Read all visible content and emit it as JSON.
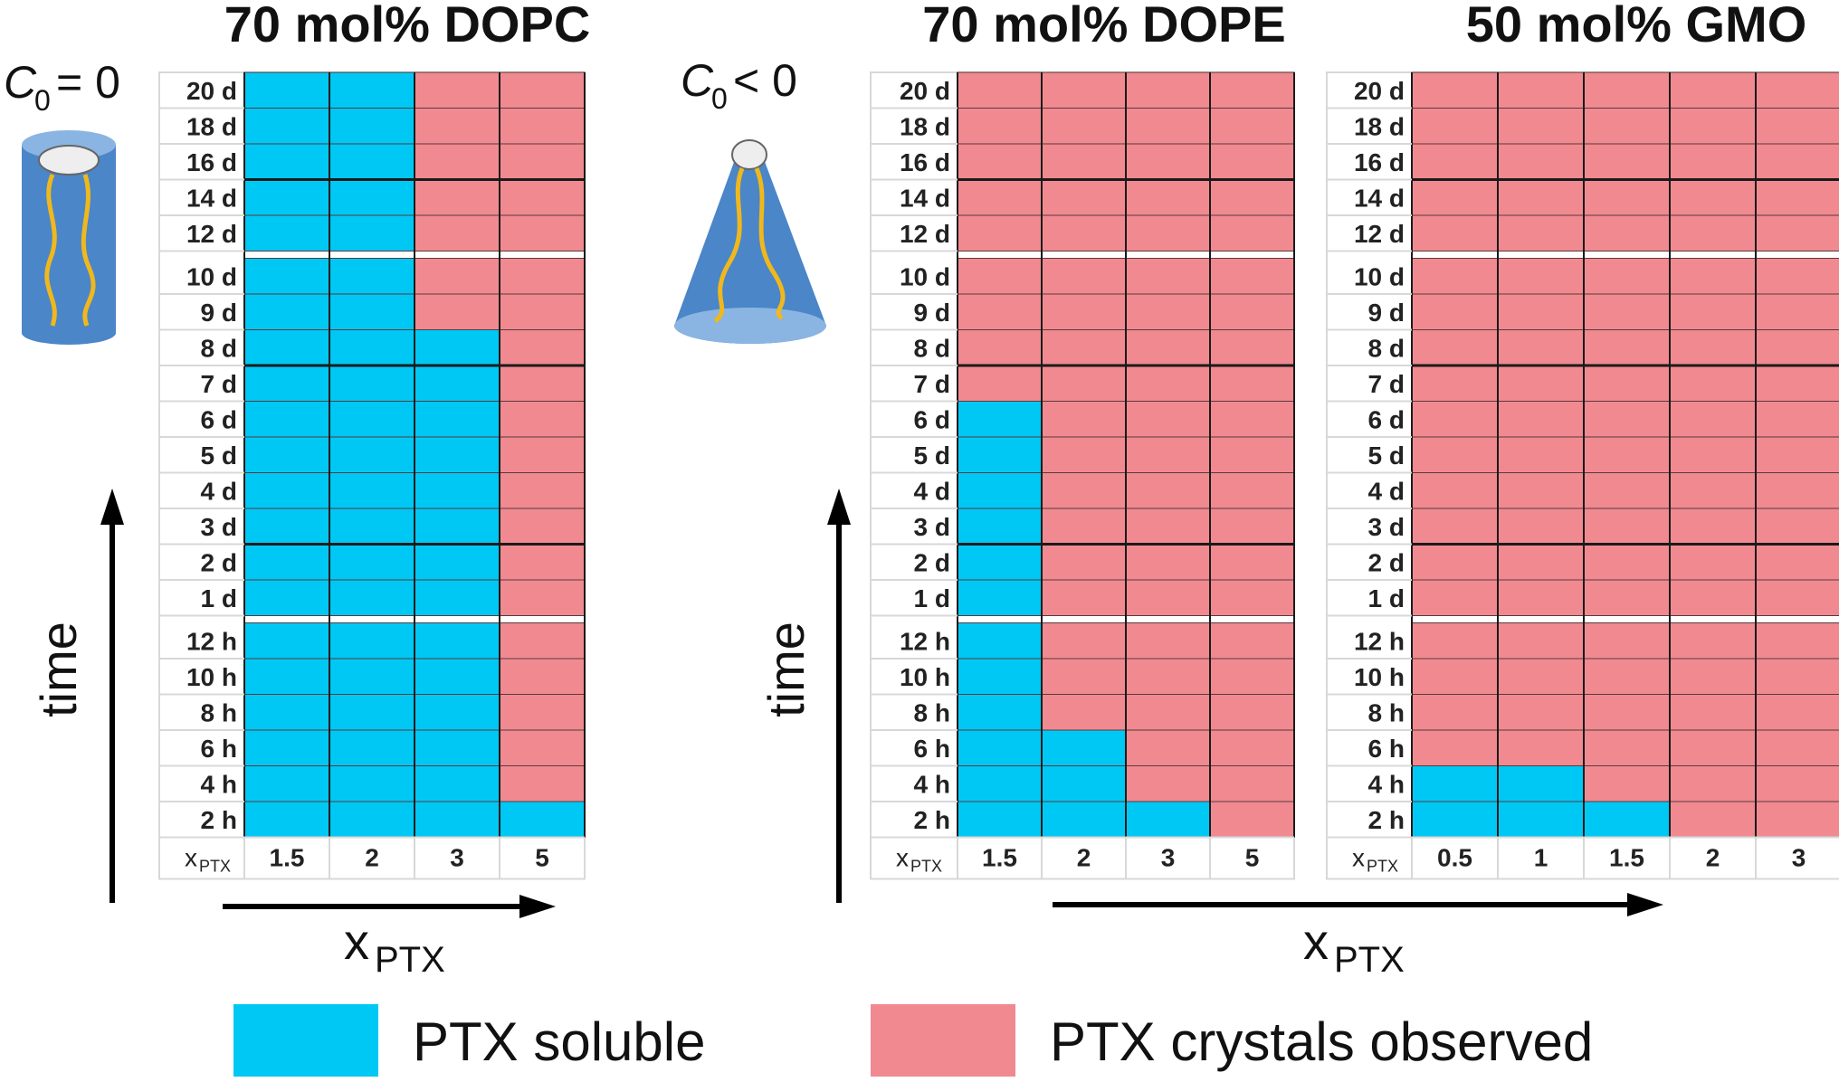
{
  "chart_data": [
    {
      "type": "heatmap",
      "title": "70 mol% DOPC",
      "curvature_label": "= 0",
      "curvature_symbol": "C",
      "curvature_subscript": "0",
      "x_categories": [
        "1.5",
        "2",
        "3",
        "5"
      ],
      "y_categories": [
        "20 d",
        "18 d",
        "16 d",
        "14 d",
        "12 d",
        "10 d",
        "9 d",
        "8 d",
        "7 d",
        "6 d",
        "5 d",
        "4 d",
        "3 d",
        "2 d",
        "1 d",
        "12 h",
        "10 h",
        "8 h",
        "6 h",
        "4 h",
        "2 h"
      ],
      "soluble_rows_per_column": [
        21,
        21,
        14,
        1
      ],
      "xlabel": "x",
      "xlabel_sub": "PTX",
      "ylabel": "time",
      "corner_label": "x",
      "corner_sub": "PTX"
    },
    {
      "type": "heatmap",
      "title": "70 mol% DOPE",
      "curvature_label": "< 0",
      "curvature_symbol": "C",
      "curvature_subscript": "0",
      "x_categories": [
        "1.5",
        "2",
        "3",
        "5"
      ],
      "y_categories": [
        "20 d",
        "18 d",
        "16 d",
        "14 d",
        "12 d",
        "10 d",
        "9 d",
        "8 d",
        "7 d",
        "6 d",
        "5 d",
        "4 d",
        "3 d",
        "2 d",
        "1 d",
        "12 h",
        "10 h",
        "8 h",
        "6 h",
        "4 h",
        "2 h"
      ],
      "soluble_rows_per_column": [
        12,
        3,
        1,
        0
      ],
      "xlabel": "x",
      "xlabel_sub": "PTX",
      "ylabel": "time",
      "corner_label": "x",
      "corner_sub": "PTX"
    },
    {
      "type": "heatmap",
      "title": "50 mol% GMO",
      "x_categories": [
        "0.5",
        "1",
        "1.5",
        "2",
        "3"
      ],
      "y_categories": [
        "20 d",
        "18 d",
        "16 d",
        "14 d",
        "12 d",
        "10 d",
        "9 d",
        "8 d",
        "7 d",
        "6 d",
        "5 d",
        "4 d",
        "3 d",
        "2 d",
        "1 d",
        "12 h",
        "10 h",
        "8 h",
        "6 h",
        "4 h",
        "2 h"
      ],
      "soluble_rows_per_column": [
        2,
        2,
        1,
        0,
        0
      ],
      "corner_label": "x",
      "corner_sub": "PTX"
    }
  ],
  "legend": [
    {
      "label": "PTX soluble",
      "color": "#00c8f4"
    },
    {
      "label": "PTX crystals observed",
      "color": "#f08a90"
    }
  ],
  "colors": {
    "soluble": "#00c8f4",
    "crystals": "#f08a90",
    "cylinder_blue": "#4a86c8",
    "tail_yellow": "#f0b81c"
  }
}
